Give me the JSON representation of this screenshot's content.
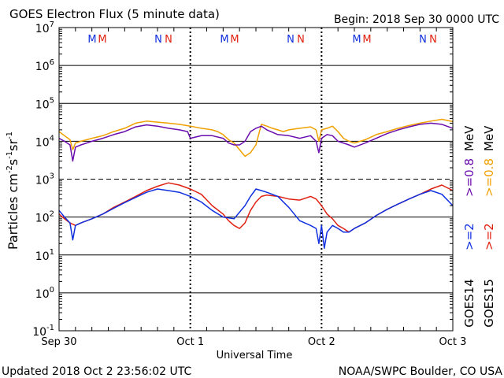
{
  "header": {
    "title": "GOES Electron Flux (5 minute data)",
    "begin": "Begin: 2018 Sep 30 0000 UTC"
  },
  "footer": {
    "updated": "Updated 2018 Oct  2 23:56:02 UTC",
    "credit": "NOAA/SWPC Boulder, CO USA"
  },
  "markers": {
    "m": "M",
    "n": "N"
  },
  "right_labels": {
    "goes14": "GOES14",
    "goes15": "GOES15",
    "ch14_ge2": ">=2",
    "ch14_ge08": ">=0.8",
    "ch15_ge2": ">=2",
    "ch15_ge08": ">=0.8",
    "mev": "MeV"
  },
  "chart_data": {
    "type": "line",
    "title": "GOES Electron Flux (5 minute data)",
    "xlabel": "Universal Time",
    "ylabel": "Particles cm⁻²s⁻¹sr⁻¹",
    "yscale": "log",
    "ylim": [
      0.1,
      10000000
    ],
    "xlim": [
      0,
      72
    ],
    "x_unit": "hours since 2018 Sep 30 0000 UTC",
    "x_ticks": [
      {
        "x": 0,
        "label": "Sep 30"
      },
      {
        "x": 24,
        "label": "Oct 1"
      },
      {
        "x": 48,
        "label": "Oct 2"
      },
      {
        "x": 72,
        "label": "Oct 3"
      }
    ],
    "y_ticks": [
      {
        "exp": "-1",
        "value": 0.1
      },
      {
        "exp": "0",
        "value": 1
      },
      {
        "exp": "1",
        "value": 10
      },
      {
        "exp": "2",
        "value": 100
      },
      {
        "exp": "3",
        "value": 1000
      },
      {
        "exp": "4",
        "value": 10000
      },
      {
        "exp": "5",
        "value": 100000
      },
      {
        "exp": "6",
        "value": 1000000
      },
      {
        "exp": "7",
        "value": 10000000
      }
    ],
    "threshold": {
      "value": 1000,
      "style": "dashed"
    },
    "grid": true,
    "colors": {
      "goes14_ge08": "#6a0dad",
      "goes15_ge08": "#f0a000",
      "goes14_ge2": "#1030e0",
      "goes15_ge2": "#e02010"
    },
    "series": [
      {
        "key": "goes15_ge08",
        "color": "#f0a000",
        "x": [
          0,
          1,
          2,
          2.5,
          3,
          4,
          6,
          8,
          10,
          12,
          14,
          16,
          18,
          20,
          22,
          24,
          26,
          28,
          29,
          30,
          31,
          32,
          33,
          34,
          35,
          36,
          37,
          38,
          39,
          40,
          41,
          42,
          44,
          46,
          47,
          47.5,
          48,
          49,
          50,
          51,
          52,
          53,
          54,
          56,
          58,
          60,
          62,
          64,
          66,
          68,
          70,
          72
        ],
        "values": [
          18000,
          14000,
          11000,
          6000,
          9000,
          10000,
          12000,
          14000,
          18000,
          22000,
          30000,
          34000,
          32000,
          30000,
          28000,
          25000,
          22000,
          20000,
          18000,
          15000,
          11000,
          9000,
          6000,
          4000,
          5000,
          8000,
          28000,
          25000,
          22000,
          20000,
          18000,
          20000,
          22000,
          24000,
          20000,
          10000,
          20000,
          22000,
          25000,
          18000,
          12000,
          10000,
          9000,
          11000,
          15000,
          18000,
          22000,
          26000,
          30000,
          34000,
          38000,
          33000
        ]
      },
      {
        "key": "goes14_ge08",
        "color": "#6a0dad",
        "x": [
          0,
          1,
          2,
          2.5,
          3,
          4,
          6,
          8,
          10,
          12,
          14,
          16,
          18,
          20,
          22,
          23.5,
          24,
          26,
          28,
          30,
          31,
          32,
          33,
          34,
          35,
          36,
          37,
          38,
          40,
          42,
          44,
          46,
          47,
          47.5,
          48,
          49,
          50,
          51,
          52,
          53,
          54,
          56,
          58,
          60,
          62,
          64,
          66,
          68,
          70,
          72
        ],
        "values": [
          12000,
          10000,
          8000,
          3000,
          7000,
          8000,
          10000,
          12000,
          15000,
          18000,
          24000,
          27000,
          25000,
          22000,
          20000,
          18000,
          12000,
          14000,
          14000,
          12000,
          9000,
          8000,
          8000,
          10000,
          18000,
          22000,
          25000,
          20000,
          15000,
          14000,
          12000,
          14000,
          10000,
          5000,
          12000,
          15000,
          14000,
          10000,
          9000,
          8000,
          7000,
          9000,
          12000,
          16000,
          20000,
          24000,
          28000,
          30000,
          28000,
          22000
        ]
      },
      {
        "key": "goes15_ge2",
        "color": "#e02010",
        "x": [
          0,
          1,
          2,
          3,
          4,
          6,
          8,
          10,
          12,
          14,
          16,
          18,
          20,
          22,
          24,
          26,
          28,
          30,
          31,
          32,
          33,
          34,
          35,
          36,
          37,
          38,
          40,
          42,
          44,
          46,
          47,
          48,
          49,
          50,
          51,
          52,
          53,
          54,
          56,
          58,
          60,
          62,
          64,
          66,
          68,
          70,
          72
        ],
        "values": [
          120,
          90,
          70,
          60,
          70,
          90,
          120,
          180,
          250,
          350,
          500,
          650,
          800,
          700,
          550,
          400,
          200,
          120,
          80,
          60,
          50,
          70,
          150,
          250,
          350,
          380,
          350,
          300,
          280,
          350,
          300,
          200,
          120,
          90,
          60,
          50,
          40,
          50,
          70,
          110,
          160,
          220,
          300,
          400,
          550,
          700,
          500
        ]
      },
      {
        "key": "goes14_ge2",
        "color": "#1030e0",
        "x": [
          0,
          1,
          2,
          2.5,
          3,
          4,
          6,
          8,
          10,
          12,
          14,
          16,
          18,
          20,
          22,
          24,
          26,
          28,
          30,
          32,
          34,
          35,
          36,
          37,
          38,
          40,
          42,
          44,
          46,
          47,
          47.5,
          48,
          48.5,
          49,
          50,
          51,
          52,
          53,
          54,
          56,
          58,
          60,
          62,
          64,
          66,
          68,
          70,
          72
        ],
        "values": [
          150,
          100,
          70,
          25,
          60,
          70,
          90,
          120,
          170,
          240,
          330,
          450,
          550,
          500,
          450,
          350,
          250,
          150,
          100,
          90,
          200,
          350,
          550,
          500,
          450,
          350,
          180,
          80,
          60,
          50,
          20,
          60,
          15,
          40,
          60,
          50,
          40,
          40,
          50,
          70,
          110,
          160,
          220,
          300,
          400,
          500,
          400,
          200
        ]
      }
    ]
  }
}
